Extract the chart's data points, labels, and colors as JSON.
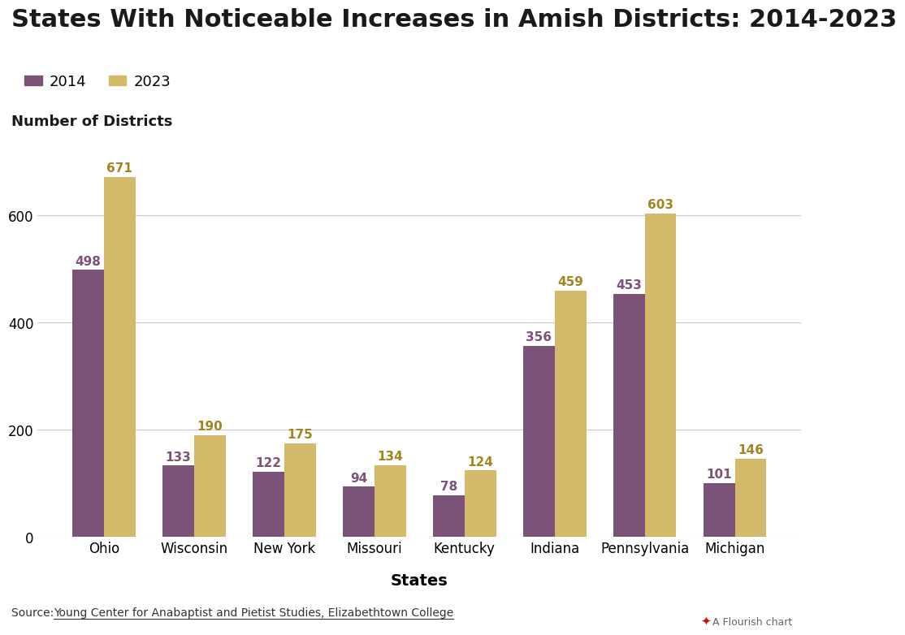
{
  "title": "States With Noticeable Increases in Amish Districts: 2014-2023",
  "ylabel": "Number of Districts",
  "xlabel": "States",
  "categories": [
    "Ohio",
    "Wisconsin",
    "New York",
    "Missouri",
    "Kentucky",
    "Indiana",
    "Pennsylvania",
    "Michigan"
  ],
  "values_2014": [
    498,
    133,
    122,
    94,
    78,
    356,
    453,
    101
  ],
  "values_2023": [
    671,
    190,
    175,
    134,
    124,
    459,
    603,
    146
  ],
  "color_2014": "#7b5278",
  "color_2023": "#d4b96a",
  "annotation_color_2023": "#a08520",
  "background_color": "#ffffff",
  "title_fontsize": 22,
  "label_fontsize": 13,
  "tick_fontsize": 12,
  "legend_labels": [
    "2014",
    "2023"
  ],
  "source_prefix": "Source: ",
  "source_link": "Young Center for Anabaptist and Pietist Studies, Elizabethtown College",
  "flourish_text": "A Flourish chart",
  "flourish_dot_color": "#cc1100",
  "ylim": [
    0,
    720
  ],
  "yticks": [
    0,
    200,
    400,
    600
  ],
  "bar_width": 0.35,
  "annotation_fontsize": 11
}
